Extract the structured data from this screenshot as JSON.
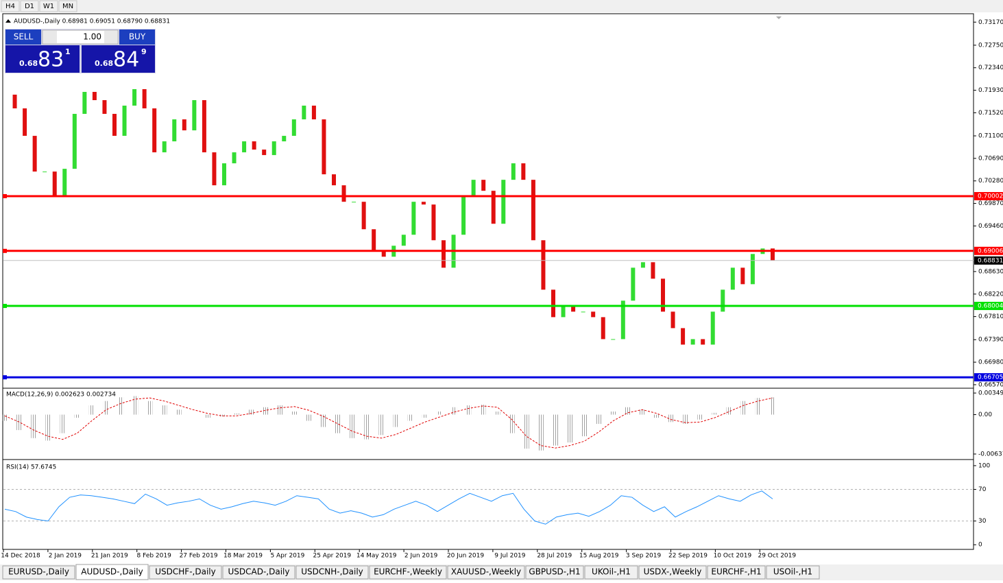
{
  "toolbar": {
    "timeframes": [
      "H4",
      "D1",
      "W1",
      "MN"
    ]
  },
  "header": "AUDUSD-,Daily  0.68981 0.69051 0.68790 0.68831",
  "trade_panel": {
    "sell": "SELL",
    "buy": "BUY",
    "lot": "1.00",
    "bid": {
      "prefix": "0.68",
      "big": "83",
      "small": "1"
    },
    "ask": {
      "prefix": "0.68",
      "big": "84",
      "small": "9"
    }
  },
  "price": {
    "ylim": [
      0.66519,
      0.73323
    ],
    "yticks": [
      {
        "value": 0.7317,
        "label": "0.73170"
      },
      {
        "value": 0.7275,
        "label": "0.72750"
      },
      {
        "value": 0.7234,
        "label": "0.72340"
      },
      {
        "value": 0.7193,
        "label": "0.71930"
      },
      {
        "value": 0.7152,
        "label": "0.71520"
      },
      {
        "value": 0.711,
        "label": "0.71100"
      },
      {
        "value": 0.7069,
        "label": "0.70690"
      },
      {
        "value": 0.7028,
        "label": "0.70280"
      },
      {
        "value": 0.6987,
        "label": "0.69870"
      },
      {
        "value": 0.6946,
        "label": "0.69460"
      },
      {
        "value": 0.6863,
        "label": "0.68630"
      },
      {
        "value": 0.6822,
        "label": "0.68220"
      },
      {
        "value": 0.6781,
        "label": "0.67810"
      },
      {
        "value": 0.6739,
        "label": "0.67390"
      },
      {
        "value": 0.6698,
        "label": "0.66980"
      },
      {
        "value": 0.6657,
        "label": "0.66570"
      }
    ],
    "levels": [
      {
        "price": 0.70002,
        "color": "#ff0000"
      },
      {
        "price": 0.69006,
        "color": "#ff0000"
      },
      {
        "price": 0.68004,
        "color": "#00e000"
      },
      {
        "price": 0.66705,
        "color": "#0000e0"
      }
    ],
    "current": 0.68831,
    "closes": [
      0.7185,
      0.716,
      0.711,
      0.7045,
      0.7045,
      0.7,
      0.705,
      0.715,
      0.719,
      0.7175,
      0.715,
      0.711,
      0.7165,
      0.7195,
      0.716,
      0.708,
      0.71,
      0.714,
      0.712,
      0.7175,
      0.708,
      0.702,
      0.706,
      0.708,
      0.71,
      0.7085,
      0.7075,
      0.71,
      0.711,
      0.714,
      0.7165,
      0.714,
      0.704,
      0.702,
      0.699,
      0.699,
      0.694,
      0.69,
      0.689,
      0.691,
      0.693,
      0.699,
      0.6985,
      0.692,
      0.687,
      0.693,
      0.7,
      0.703,
      0.701,
      0.695,
      0.703,
      0.706,
      0.703,
      0.692,
      0.683,
      0.678,
      0.68,
      0.679,
      0.679,
      0.678,
      0.674,
      0.674,
      0.681,
      0.687,
      0.688,
      0.685,
      0.679,
      0.676,
      0.673,
      0.674,
      0.673,
      0.679,
      0.683,
      0.687,
      0.684,
      0.6895,
      0.6905,
      0.6883
    ]
  },
  "macd": {
    "label": "MACD(12,26,9) 0.002623 0.002734",
    "ylim": [
      -0.00704,
      0.00405
    ],
    "yticks": [
      0.00349,
      {
        "value": 0,
        "label": "0.00"
      },
      -0.00637
    ],
    "histogram": [
      -0.001,
      -0.0025,
      -0.0038,
      -0.0042,
      -0.003,
      -0.0005,
      0.0015,
      0.0022,
      0.0028,
      0.003,
      0.0022,
      0.0015,
      0.0008,
      0,
      -0.0005,
      -0.0003,
      0.0002,
      0.0008,
      0.0012,
      0.0015,
      0.0005,
      -0.001,
      -0.002,
      -0.003,
      -0.0038,
      -0.004,
      -0.0033,
      -0.002,
      -0.001,
      -0.0005,
      0.0005,
      0.0012,
      0.0015,
      0.0016,
      0.0005,
      -0.003,
      -0.0055,
      -0.0058,
      -0.005,
      -0.0045,
      -0.0035,
      -0.0015,
      0.0005,
      0.0012,
      0.0008,
      -0.0005,
      -0.0012,
      -0.0015,
      -0.0008,
      0.0003,
      0.0012,
      0.0022,
      0.0027,
      0.0028
    ],
    "signal": [
      -0.0002,
      -0.0012,
      -0.0025,
      -0.0035,
      -0.004,
      -0.003,
      -0.001,
      0.0008,
      0.0018,
      0.0025,
      0.0027,
      0.0022,
      0.0015,
      0.0008,
      0.0002,
      -0.0002,
      -0.0002,
      0.0002,
      0.0007,
      0.0011,
      0.0013,
      0.0007,
      -0.0003,
      -0.0015,
      -0.0027,
      -0.0035,
      -0.0038,
      -0.0032,
      -0.0022,
      -0.0012,
      -0.0004,
      0.0004,
      0.001,
      0.0014,
      0.0012,
      -0.0008,
      -0.0035,
      -0.005,
      -0.0054,
      -0.005,
      -0.0043,
      -0.0028,
      -0.001,
      0.0003,
      0.0008,
      0.0002,
      -0.0008,
      -0.0013,
      -0.0012,
      -0.0005,
      0.0005,
      0.0015,
      0.0022,
      0.0027
    ]
  },
  "rsi": {
    "label": "RSI(14) 57.6745",
    "ylim": [
      -5,
      106
    ],
    "yticks": [
      100,
      70,
      30,
      0
    ],
    "values": [
      45,
      42,
      35,
      32,
      30,
      48,
      60,
      63,
      62,
      60,
      58,
      55,
      52,
      64,
      58,
      50,
      53,
      55,
      58,
      50,
      45,
      48,
      52,
      55,
      53,
      50,
      55,
      62,
      60,
      58,
      45,
      40,
      43,
      40,
      35,
      38,
      45,
      50,
      55,
      50,
      42,
      50,
      58,
      65,
      60,
      55,
      62,
      65,
      45,
      30,
      26,
      35,
      38,
      40,
      36,
      42,
      50,
      62,
      60,
      50,
      42,
      48,
      35,
      42,
      48,
      55,
      62,
      58,
      55,
      63,
      68,
      58
    ]
  },
  "dates": [
    "14 Dec 2018",
    "2 Jan 2019",
    "21 Jan 2019",
    "8 Feb 2019",
    "27 Feb 2019",
    "18 Mar 2019",
    "5 Apr 2019",
    "25 Apr 2019",
    "14 May 2019",
    "2 Jun 2019",
    "20 Jun 2019",
    "9 Jul 2019",
    "28 Jul 2019",
    "15 Aug 2019",
    "3 Sep 2019",
    "22 Sep 2019",
    "10 Oct 2019",
    "29 Oct 2019"
  ],
  "tabs": [
    "EURUSD-,Daily",
    "AUDUSD-,Daily",
    "USDCHF-,Daily",
    "USDCAD-,Daily",
    "USDCNH-,Daily",
    "EURCHF-,Weekly",
    "XAUUSD-,Weekly",
    "GBPUSD-,H1",
    "UKOil-,H1",
    "USDX-,Weekly",
    "EURCHF-,H1",
    "USOil-,H1"
  ],
  "active_tab": 1
}
